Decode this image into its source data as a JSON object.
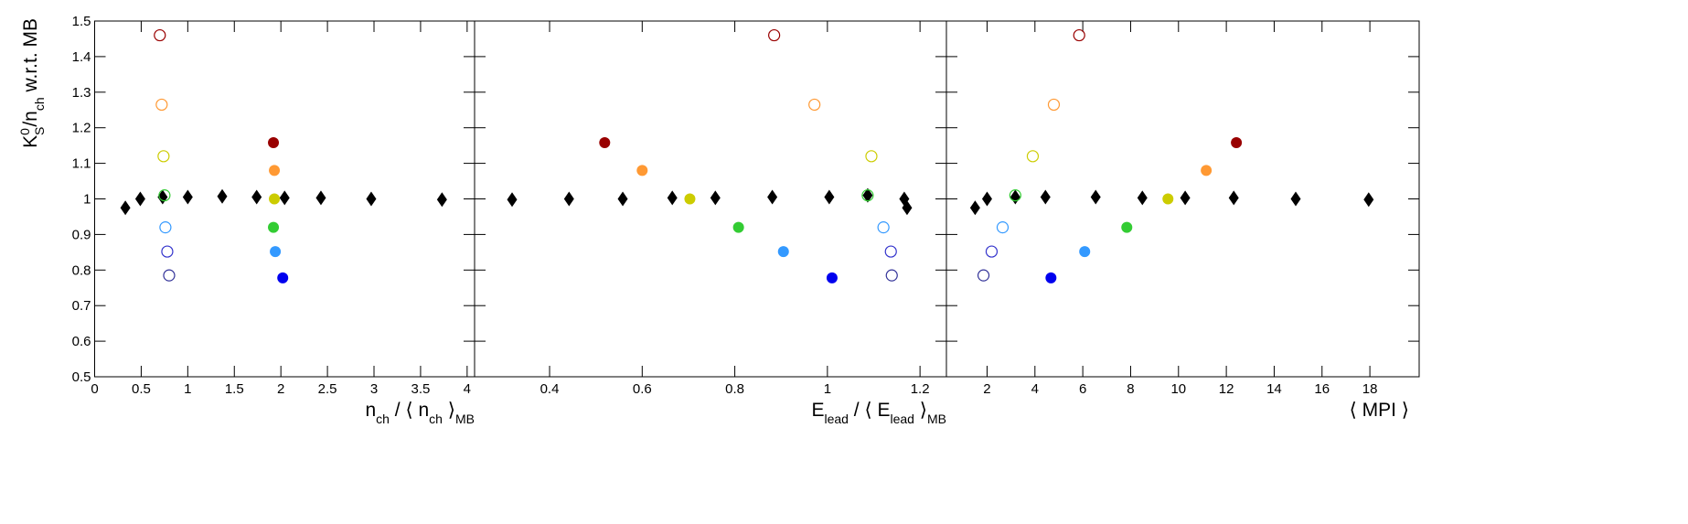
{
  "chart_data": [
    {
      "type": "scatter",
      "ylabel": [
        "K",
        "0",
        "S",
        "/n",
        "ch",
        " w.r.t. MB"
      ],
      "xlabel": [
        "n",
        "ch",
        " / ⟨ n",
        "ch",
        " ⟩",
        "MB"
      ],
      "xlim": [
        0,
        4.08
      ],
      "xticks": [
        0,
        0.5,
        1,
        1.5,
        2,
        2.5,
        3,
        3.5,
        4
      ],
      "ylim": [
        0.5,
        1.5
      ],
      "yticks": [
        0.5,
        0.6,
        0.7,
        0.8,
        0.9,
        1,
        1.1,
        1.2,
        1.3,
        1.4,
        1.5
      ],
      "series": [
        {
          "marker": "diamond",
          "color": "#000000",
          "x": [
            0.33,
            0.49,
            0.73,
            1.0,
            1.37,
            1.74,
            2.04,
            2.43,
            2.97,
            3.73
          ],
          "values": [
            0.975,
            1.0,
            1.005,
            1.005,
            1.007,
            1.005,
            1.003,
            1.003,
            1.0,
            0.998
          ]
        },
        {
          "marker": "open-circle",
          "colors": [
            "#990000",
            "#ff9933",
            "#cccc00",
            "#33cc33",
            "#3399ff",
            "#3333cc",
            "#333399"
          ],
          "x": [
            0.7,
            0.72,
            0.74,
            0.75,
            0.76,
            0.78,
            0.8
          ],
          "values": [
            1.46,
            1.265,
            1.12,
            1.01,
            0.92,
            0.852,
            0.785
          ]
        },
        {
          "marker": "filled-circle",
          "colors": [
            "#990000",
            "#ff9933",
            "#cccc00",
            "#33cc33",
            "#3399ff",
            "#0000ee"
          ],
          "x": [
            1.92,
            1.93,
            1.93,
            1.92,
            1.94,
            2.02
          ],
          "values": [
            1.158,
            1.08,
            1.0,
            0.92,
            0.852,
            0.778
          ]
        }
      ]
    },
    {
      "type": "scatter",
      "xlabel": [
        "E",
        "lead",
        " / ⟨ E",
        "lead",
        " ⟩",
        "MB"
      ],
      "xlim": [
        0.238,
        1.257
      ],
      "xticks": [
        0.4,
        0.6,
        0.8,
        1,
        1.2
      ],
      "ylim": [
        0.5,
        1.5
      ],
      "series": [
        {
          "marker": "diamond",
          "color": "#000000",
          "x": [
            0.319,
            0.442,
            0.558,
            0.665,
            0.758,
            0.881,
            1.004,
            1.087,
            1.166,
            1.172
          ],
          "values": [
            0.998,
            1.0,
            1.0,
            1.003,
            1.003,
            1.005,
            1.005,
            1.01,
            1.0,
            0.975
          ]
        },
        {
          "marker": "open-circle",
          "colors": [
            "#990000",
            "#ff9933",
            "#cccc00",
            "#33cc33",
            "#3399ff",
            "#3333cc",
            "#333399"
          ],
          "x": [
            0.885,
            0.972,
            1.095,
            1.087,
            1.121,
            1.137,
            1.139
          ],
          "values": [
            1.46,
            1.265,
            1.12,
            1.01,
            0.92,
            0.852,
            0.785
          ]
        },
        {
          "marker": "filled-circle",
          "colors": [
            "#990000",
            "#ff9933",
            "#cccc00",
            "#33cc33",
            "#3399ff",
            "#0000ee"
          ],
          "x": [
            0.519,
            0.6,
            0.703,
            0.808,
            0.905,
            1.01
          ],
          "values": [
            1.158,
            1.08,
            1.0,
            0.92,
            0.852,
            0.778
          ]
        }
      ]
    },
    {
      "type": "scatter",
      "xlabel": [
        "⟨ MPI ⟩"
      ],
      "xlim": [
        0.3,
        20.06
      ],
      "xticks": [
        2,
        4,
        6,
        8,
        10,
        12,
        14,
        16,
        18
      ],
      "ylim": [
        0.5,
        1.5
      ],
      "series": [
        {
          "marker": "diamond",
          "color": "#000000",
          "x": [
            1.5,
            2.0,
            3.18,
            4.44,
            6.54,
            8.49,
            10.28,
            12.31,
            14.9,
            17.95
          ],
          "values": [
            0.975,
            1.0,
            1.005,
            1.005,
            1.005,
            1.003,
            1.003,
            1.003,
            1.0,
            0.998
          ]
        },
        {
          "marker": "open-circle",
          "colors": [
            "#990000",
            "#ff9933",
            "#cccc00",
            "#33cc33",
            "#3399ff",
            "#3333cc",
            "#333399"
          ],
          "x": [
            5.85,
            4.79,
            3.91,
            3.18,
            2.65,
            2.19,
            1.85
          ],
          "values": [
            1.46,
            1.265,
            1.12,
            1.01,
            0.92,
            0.852,
            0.785
          ]
        },
        {
          "marker": "filled-circle",
          "colors": [
            "#990000",
            "#ff9933",
            "#cccc00",
            "#33cc33",
            "#3399ff",
            "#0000ee"
          ],
          "x": [
            12.42,
            11.16,
            9.56,
            7.84,
            6.08,
            4.67
          ],
          "values": [
            1.158,
            1.08,
            1.0,
            0.92,
            0.852,
            0.778
          ]
        }
      ]
    }
  ]
}
